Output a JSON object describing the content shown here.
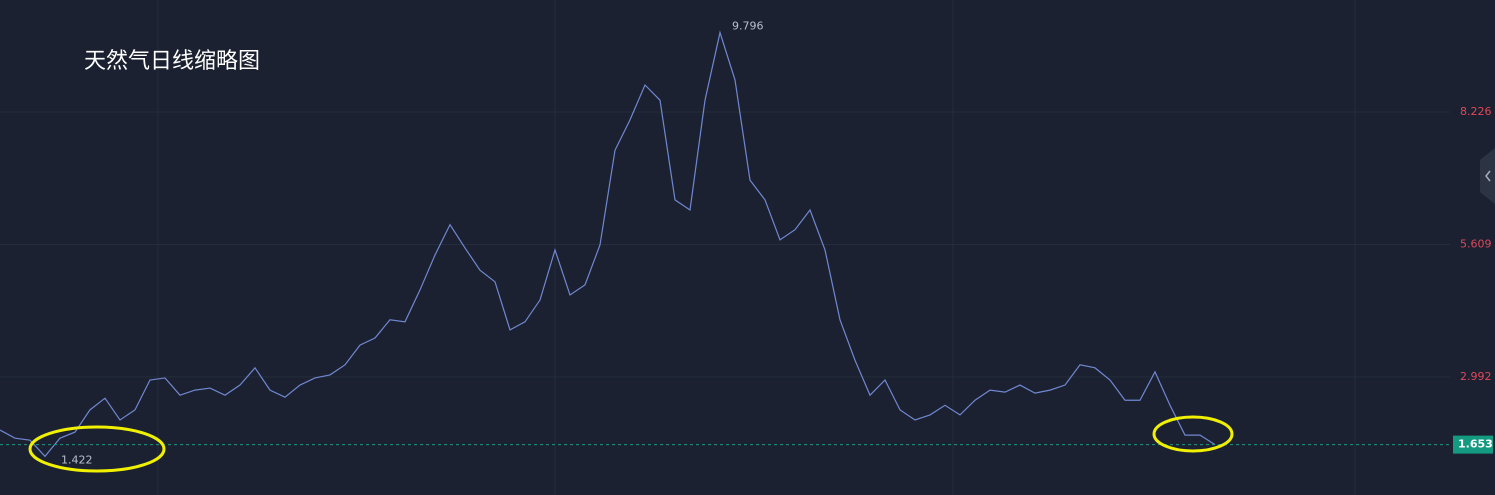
{
  "chart_data": {
    "type": "line",
    "title": "天然气日线缩略图",
    "series": [
      {
        "name": "天然气",
        "color": "#7088d2",
        "values": [
          1.94,
          1.78,
          1.74,
          1.422,
          1.78,
          1.9,
          2.34,
          2.57,
          2.14,
          2.34,
          2.93,
          2.97,
          2.63,
          2.73,
          2.77,
          2.63,
          2.83,
          3.17,
          2.73,
          2.59,
          2.83,
          2.97,
          3.03,
          3.23,
          3.62,
          3.76,
          4.12,
          4.08,
          4.71,
          5.4,
          6.0,
          5.54,
          5.1,
          4.87,
          3.92,
          4.08,
          4.51,
          5.5,
          4.61,
          4.81,
          5.6,
          7.47,
          8.07,
          8.76,
          8.46,
          6.49,
          6.29,
          8.46,
          9.796,
          8.86,
          6.88,
          6.49,
          5.7,
          5.9,
          6.29,
          5.5,
          4.12,
          3.32,
          2.63,
          2.93,
          2.34,
          2.14,
          2.24,
          2.43,
          2.24,
          2.53,
          2.73,
          2.69,
          2.83,
          2.67,
          2.73,
          2.83,
          3.23,
          3.17,
          2.93,
          2.53,
          2.53,
          3.09,
          2.43,
          1.84,
          1.84,
          1.653
        ]
      }
    ],
    "ylim": [
      0.657,
      10.44
    ],
    "yticks": [
      2.992,
      5.609,
      8.226
    ],
    "grid": true,
    "tick_color": "#e0485a",
    "last_color": "#159a82"
  }
}
